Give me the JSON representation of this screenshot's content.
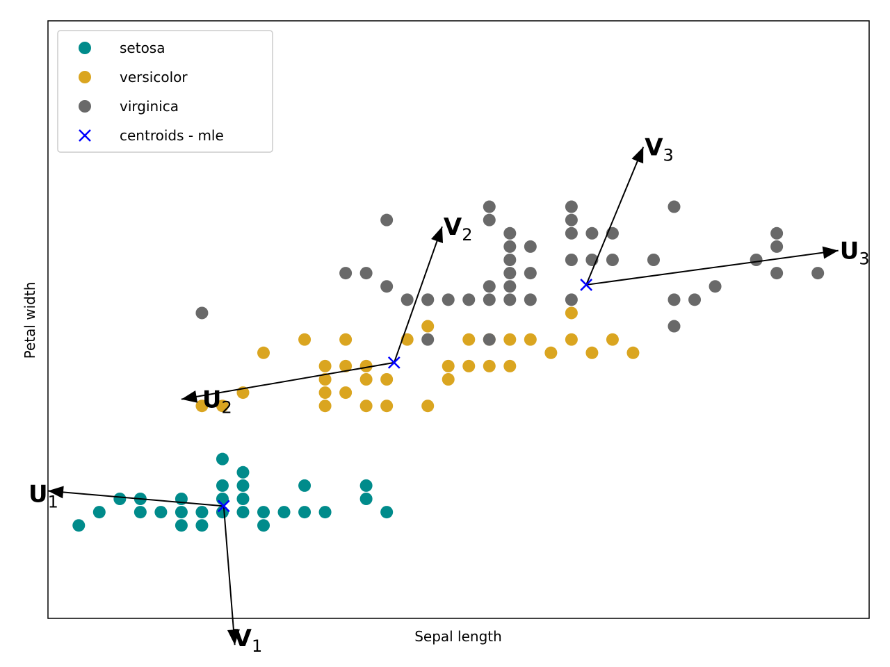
{
  "chart_data": {
    "type": "scatter",
    "xlabel": "Sepal length",
    "ylabel": "Petal width",
    "xlim": [
      4.15,
      8.15
    ],
    "ylim": [
      -0.6,
      3.9
    ],
    "grid": false,
    "ticks": false,
    "legend_position": "top-left",
    "series": [
      {
        "name": "setosa",
        "marker": "circle",
        "color": "#008B8B",
        "points": [
          [
            4.3,
            0.1
          ],
          [
            4.4,
            0.2
          ],
          [
            4.5,
            0.3
          ],
          [
            4.6,
            0.3
          ],
          [
            4.6,
            0.2
          ],
          [
            4.7,
            0.2
          ],
          [
            4.8,
            0.3
          ],
          [
            4.8,
            0.2
          ],
          [
            4.8,
            0.1
          ],
          [
            4.9,
            0.2
          ],
          [
            4.9,
            0.1
          ],
          [
            5.0,
            0.2
          ],
          [
            5.0,
            0.3
          ],
          [
            5.0,
            0.4
          ],
          [
            5.0,
            0.6
          ],
          [
            5.1,
            0.5
          ],
          [
            5.1,
            0.4
          ],
          [
            5.1,
            0.3
          ],
          [
            5.1,
            0.2
          ],
          [
            5.2,
            0.2
          ],
          [
            5.2,
            0.1
          ],
          [
            5.3,
            0.2
          ],
          [
            5.4,
            0.2
          ],
          [
            5.4,
            0.4
          ],
          [
            5.5,
            0.2
          ],
          [
            5.7,
            0.4
          ],
          [
            5.7,
            0.3
          ],
          [
            5.8,
            0.2
          ]
        ]
      },
      {
        "name": "versicolor",
        "color": "#DAA520",
        "marker": "circle",
        "points": [
          [
            4.9,
            1.0
          ],
          [
            5.0,
            1.0
          ],
          [
            5.1,
            1.1
          ],
          [
            5.2,
            1.4
          ],
          [
            5.4,
            1.5
          ],
          [
            5.5,
            1.3
          ],
          [
            5.5,
            1.2
          ],
          [
            5.5,
            1.1
          ],
          [
            5.5,
            1.0
          ],
          [
            5.6,
            1.5
          ],
          [
            5.6,
            1.3
          ],
          [
            5.6,
            1.1
          ],
          [
            5.7,
            1.3
          ],
          [
            5.7,
            1.2
          ],
          [
            5.7,
            1.0
          ],
          [
            5.8,
            1.2
          ],
          [
            5.8,
            1.0
          ],
          [
            5.9,
            1.5
          ],
          [
            6.0,
            1.6
          ],
          [
            6.0,
            1.0
          ],
          [
            6.1,
            1.3
          ],
          [
            6.1,
            1.2
          ],
          [
            6.2,
            1.5
          ],
          [
            6.2,
            1.3
          ],
          [
            6.3,
            1.3
          ],
          [
            6.3,
            1.5
          ],
          [
            6.4,
            1.3
          ],
          [
            6.4,
            1.5
          ],
          [
            6.5,
            1.5
          ],
          [
            6.6,
            1.4
          ],
          [
            6.7,
            1.7
          ],
          [
            6.7,
            1.5
          ],
          [
            6.8,
            1.4
          ],
          [
            6.9,
            1.5
          ],
          [
            7.0,
            1.4
          ]
        ]
      },
      {
        "name": "virginica",
        "color": "#696969",
        "marker": "circle",
        "points": [
          [
            4.9,
            1.7
          ],
          [
            5.6,
            2.0
          ],
          [
            5.7,
            2.0
          ],
          [
            5.8,
            2.4
          ],
          [
            5.8,
            1.9
          ],
          [
            5.9,
            1.8
          ],
          [
            6.0,
            1.8
          ],
          [
            6.0,
            1.5
          ],
          [
            6.0,
            1.8
          ],
          [
            6.1,
            1.8
          ],
          [
            6.2,
            1.8
          ],
          [
            6.3,
            2.5
          ],
          [
            6.3,
            2.4
          ],
          [
            6.3,
            1.9
          ],
          [
            6.3,
            1.8
          ],
          [
            6.3,
            1.5
          ],
          [
            6.4,
            2.3
          ],
          [
            6.4,
            2.2
          ],
          [
            6.4,
            2.1
          ],
          [
            6.4,
            2.0
          ],
          [
            6.4,
            1.9
          ],
          [
            6.4,
            1.8
          ],
          [
            6.5,
            2.2
          ],
          [
            6.5,
            2.0
          ],
          [
            6.5,
            1.8
          ],
          [
            6.7,
            2.5
          ],
          [
            6.7,
            2.4
          ],
          [
            6.7,
            2.3
          ],
          [
            6.7,
            2.1
          ],
          [
            6.7,
            1.8
          ],
          [
            6.8,
            2.3
          ],
          [
            6.8,
            2.1
          ],
          [
            6.9,
            2.3
          ],
          [
            6.9,
            2.1
          ],
          [
            7.1,
            2.1
          ],
          [
            7.2,
            2.5
          ],
          [
            7.2,
            1.8
          ],
          [
            7.2,
            1.6
          ],
          [
            7.3,
            1.8
          ],
          [
            7.4,
            1.9
          ],
          [
            7.6,
            2.1
          ],
          [
            7.7,
            2.3
          ],
          [
            7.7,
            2.2
          ],
          [
            7.7,
            2.0
          ],
          [
            7.9,
            2.0
          ]
        ]
      },
      {
        "name": "centroids - mle",
        "color": "#0000FF",
        "marker": "x",
        "points": [
          [
            5.006,
            0.246
          ],
          [
            5.836,
            1.326
          ],
          [
            6.772,
            1.912
          ]
        ]
      }
    ],
    "vectors": [
      {
        "label": "U",
        "subscript": "1",
        "from": [
          5.006,
          0.246
        ],
        "to": [
          4.15,
          0.36
        ]
      },
      {
        "label": "V",
        "subscript": "1",
        "from": [
          5.006,
          0.246
        ],
        "to": [
          5.06,
          -0.8
        ]
      },
      {
        "label": "U",
        "subscript": "2",
        "from": [
          5.836,
          1.326
        ],
        "to": [
          4.8,
          1.05
        ]
      },
      {
        "label": "V",
        "subscript": "2",
        "from": [
          5.836,
          1.326
        ],
        "to": [
          6.07,
          2.35
        ]
      },
      {
        "label": "U",
        "subscript": "3",
        "from": [
          6.772,
          1.912
        ],
        "to": [
          8.0,
          2.17
        ]
      },
      {
        "label": "V",
        "subscript": "3",
        "from": [
          6.772,
          1.912
        ],
        "to": [
          7.05,
          2.95
        ]
      }
    ]
  }
}
